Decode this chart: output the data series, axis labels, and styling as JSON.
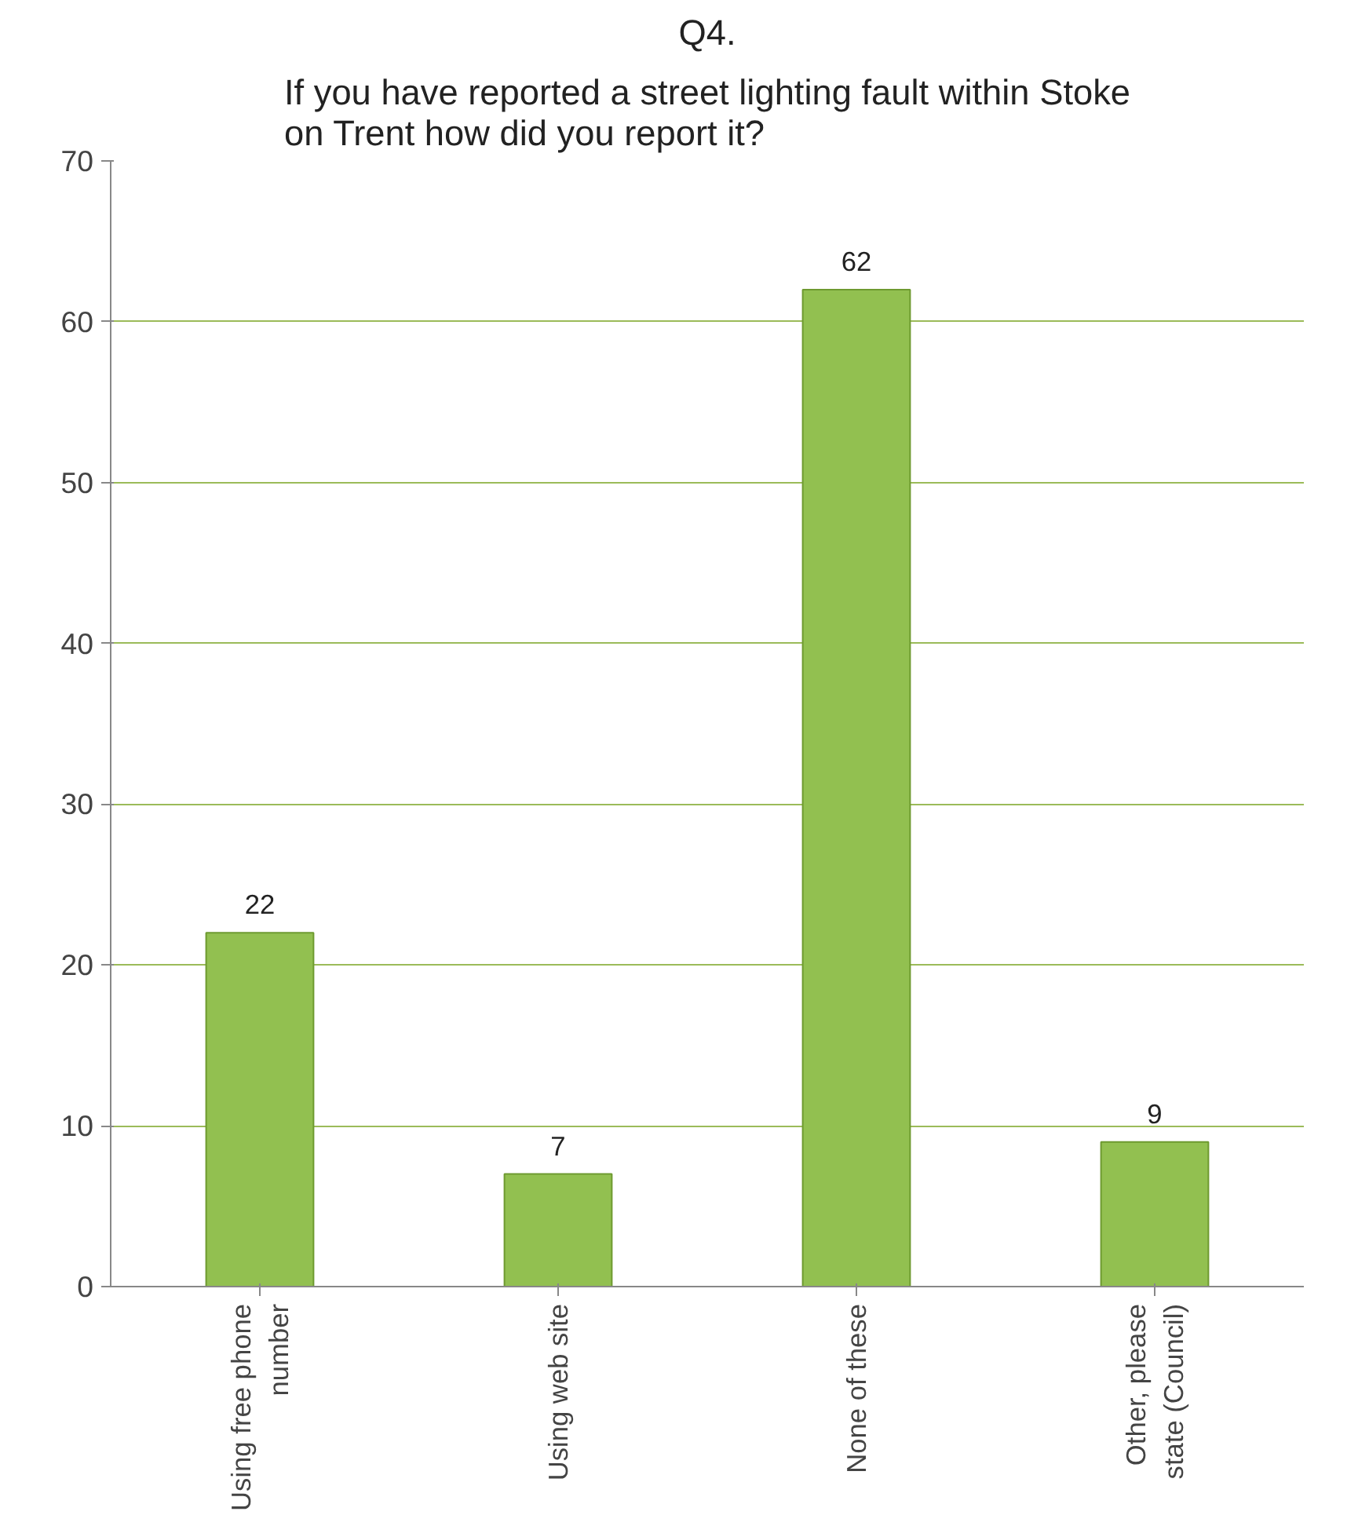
{
  "chart_data": {
    "type": "bar",
    "title": "Q4.",
    "subtitle": "If you have reported a street lighting fault within Stoke on Trent how did you report it?",
    "categories": [
      "Using free phone number",
      "Using web site",
      "None of these",
      "Other, please state (Council)"
    ],
    "values": [
      22,
      7,
      62,
      9
    ],
    "color": "#92c050",
    "ylim": [
      0,
      70
    ],
    "yticks": [
      0,
      10,
      20,
      30,
      40,
      50,
      60,
      70
    ],
    "grid": "y",
    "data_labels": true
  }
}
